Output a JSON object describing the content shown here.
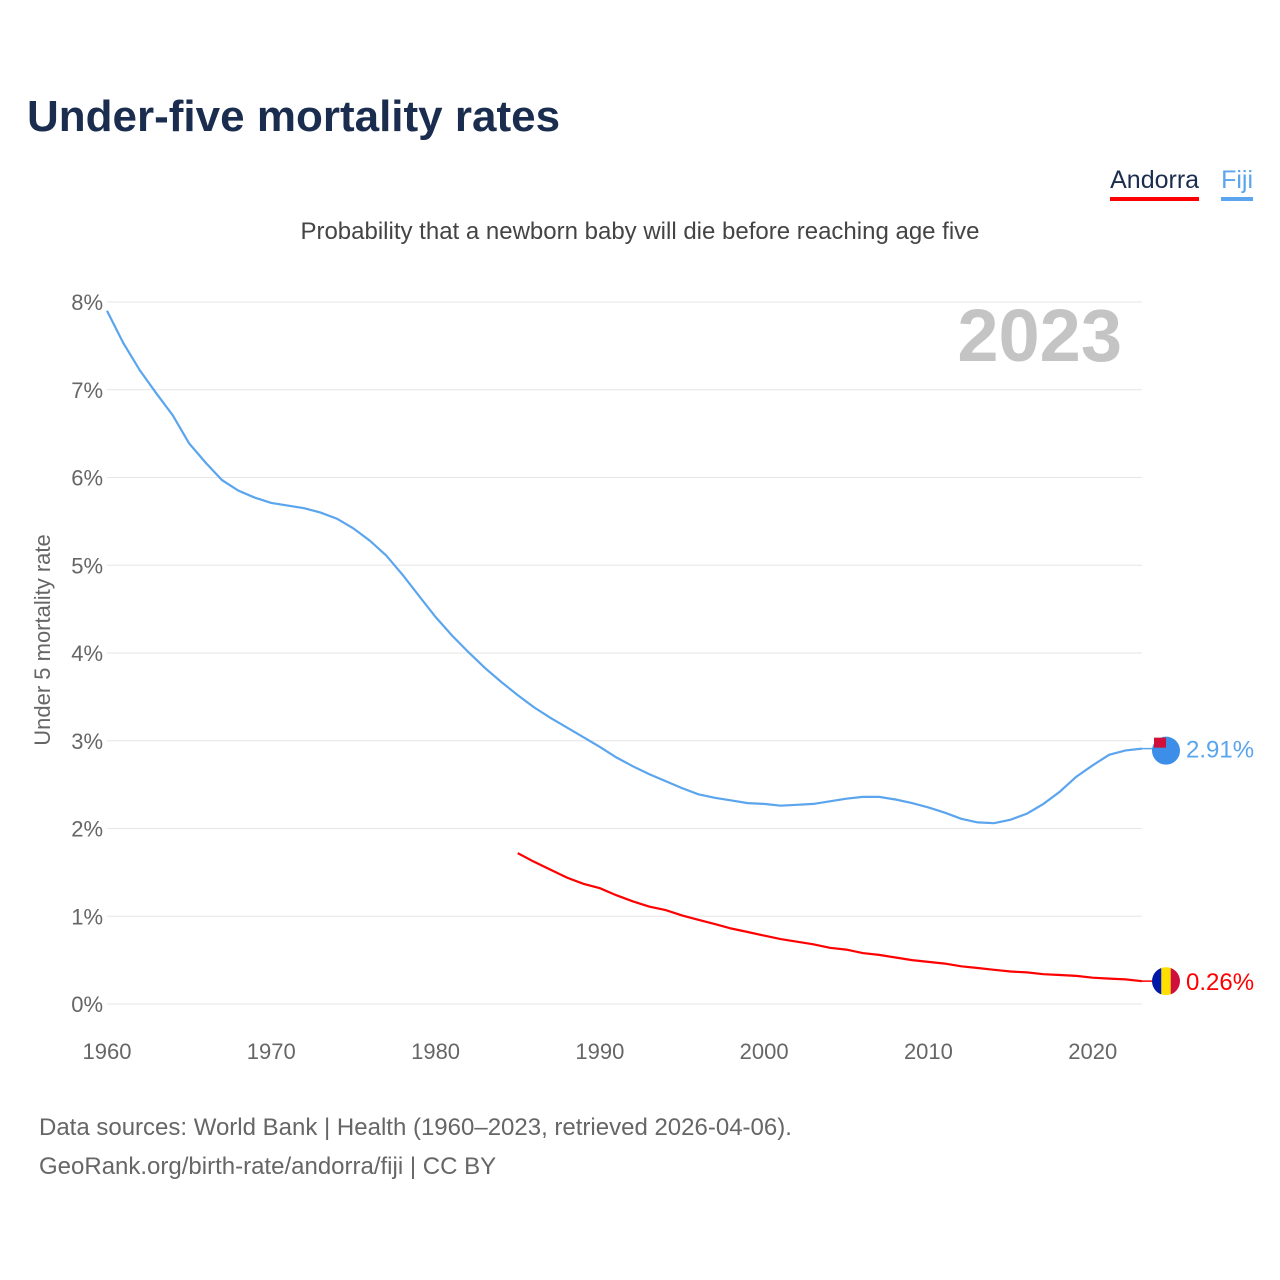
{
  "title": "Under-five mortality rates",
  "subtitle": "Probability that a newborn baby will die before reaching age five",
  "source_line1": "Data sources: World Bank | Health (1960–2023, retrieved 2026-04-06).",
  "source_line2": "GeoRank.org/birth-rate/andorra/fiji | CC BY",
  "chart_data": {
    "type": "line",
    "title": "Under-five mortality rates",
    "year_label": "2023",
    "xlabel": "",
    "ylabel": "Under 5 mortality rate",
    "xlim": [
      1960,
      2023
    ],
    "ylim": [
      0,
      8
    ],
    "xticks": [
      1960,
      1970,
      1980,
      1990,
      2000,
      2010,
      2020
    ],
    "yticks": [
      "0%",
      "1%",
      "2%",
      "3%",
      "4%",
      "5%",
      "6%",
      "7%",
      "8%"
    ],
    "grid": true,
    "legend_position": "top-right",
    "series": [
      {
        "name": "Andorra",
        "color": "#ff0000",
        "start_year": 1985,
        "end_label": "0.26%",
        "values": [
          1.72,
          1.62,
          1.53,
          1.44,
          1.37,
          1.32,
          1.24,
          1.17,
          1.11,
          1.07,
          1.01,
          0.96,
          0.91,
          0.86,
          0.82,
          0.78,
          0.74,
          0.71,
          0.68,
          0.64,
          0.62,
          0.58,
          0.56,
          0.53,
          0.5,
          0.48,
          0.46,
          0.43,
          0.41,
          0.39,
          0.37,
          0.36,
          0.34,
          0.33,
          0.32,
          0.3,
          0.29,
          0.28,
          0.26
        ]
      },
      {
        "name": "Fiji",
        "color": "#5aa5ee",
        "start_year": 1960,
        "end_label": "2.91%",
        "values": [
          7.9,
          7.53,
          7.22,
          6.96,
          6.71,
          6.39,
          6.17,
          5.97,
          5.85,
          5.77,
          5.71,
          5.68,
          5.65,
          5.6,
          5.53,
          5.42,
          5.28,
          5.11,
          4.89,
          4.65,
          4.41,
          4.2,
          4.01,
          3.83,
          3.67,
          3.52,
          3.38,
          3.26,
          3.15,
          3.04,
          2.93,
          2.81,
          2.71,
          2.62,
          2.54,
          2.46,
          2.39,
          2.35,
          2.32,
          2.29,
          2.28,
          2.26,
          2.27,
          2.28,
          2.31,
          2.34,
          2.36,
          2.36,
          2.33,
          2.29,
          2.24,
          2.18,
          2.11,
          2.07,
          2.06,
          2.1,
          2.17,
          2.28,
          2.42,
          2.59,
          2.72,
          2.84,
          2.89,
          2.91
        ]
      }
    ]
  }
}
